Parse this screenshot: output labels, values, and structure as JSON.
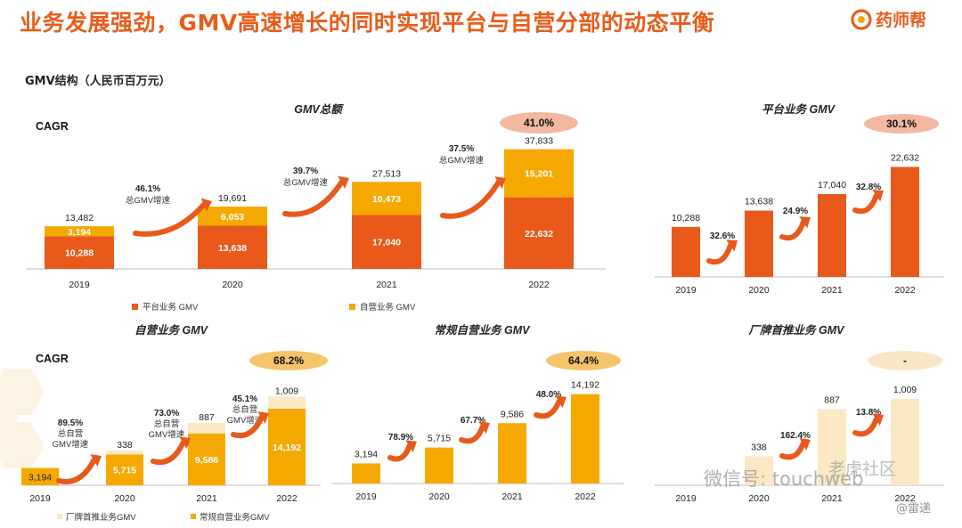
{
  "slide": {
    "title": "业务发展强劲，GMV高速增长的同时实现平台与自营分部的动态平衡",
    "subtitle": "GMV结构（人民币百万元）",
    "logo": "药师帮",
    "watermark": "微信号: touchweb",
    "watermark2": "@雷递",
    "watermark3": "老虎社区"
  },
  "colors": {
    "platform": "#e8591a",
    "self": "#f5a800",
    "light": "#fbe9c4",
    "bubble_red": "#f2b8a0",
    "bubble_yellow": "#f6c46a",
    "bubble_pale": "#fae6c6"
  },
  "chart_data": [
    {
      "id": "gmv-total",
      "type": "bar",
      "title": "GMV总额",
      "cagr_label": "CAGR",
      "cagr_value": "41.0%",
      "categories": [
        "2019",
        "2020",
        "2021",
        "2022"
      ],
      "series": [
        {
          "name": "平台业务 GMV",
          "values": [
            10288,
            13638,
            17040,
            22632
          ]
        },
        {
          "name": "自营业务 GMV",
          "values": [
            3194,
            6053,
            10473,
            15201
          ]
        }
      ],
      "totals": [
        "13,482",
        "19,691",
        "27,513",
        "37,833"
      ],
      "labels_platform": [
        "10,288",
        "13,638",
        "17,040",
        "22,632"
      ],
      "labels_self": [
        "3,194",
        "6,053",
        "10,473",
        "15,201"
      ],
      "growth": [
        {
          "rate": "46.1%",
          "text": "总GMV增速"
        },
        {
          "rate": "39.7%",
          "text": "总GMV增速"
        },
        {
          "rate": "37.5%",
          "text": "总GMV增速"
        }
      ],
      "ylim": [
        0,
        40000
      ]
    },
    {
      "id": "platform",
      "type": "bar",
      "title": "平台业务 GMV",
      "cagr_value": "30.1%",
      "categories": [
        "2019",
        "2020",
        "2021",
        "2022"
      ],
      "values": [
        10288,
        13638,
        17040,
        22632
      ],
      "labels": [
        "10,288",
        "13,638",
        "17,040",
        "22,632"
      ],
      "growth": [
        "32.6%",
        "24.9%",
        "32.8%"
      ],
      "ylim": [
        0,
        24000
      ]
    },
    {
      "id": "self-operated",
      "type": "bar",
      "title": "自营业务 GMV",
      "cagr_label": "CAGR",
      "cagr_value": "68.2%",
      "categories": [
        "2019",
        "2020",
        "2021",
        "2022"
      ],
      "series": [
        {
          "name": "厂牌首推业务GMV",
          "values": [
            0,
            338,
            887,
            1009
          ]
        },
        {
          "name": "常规自营业务GMV",
          "values": [
            3194,
            5715,
            9586,
            14192
          ]
        }
      ],
      "labels_brand": [
        "",
        "338",
        "887",
        "1,009"
      ],
      "labels_regular": [
        "3,194",
        "5,715",
        "9,586",
        "14,192"
      ],
      "growth": [
        {
          "rate": "89.5%",
          "line1": "总自营",
          "line2": "GMV增速"
        },
        {
          "rate": "73.0%",
          "line1": "总自营",
          "line2": "GMV增速"
        },
        {
          "rate": "45.1%",
          "line1": "总自营",
          "line2": "GMV增速"
        }
      ],
      "ylim": [
        0,
        16000
      ]
    },
    {
      "id": "regular-self",
      "type": "bar",
      "title": "常规自营业务 GMV",
      "cagr_value": "64.4%",
      "categories": [
        "2019",
        "2020",
        "2021",
        "2022"
      ],
      "values": [
        3194,
        5715,
        9586,
        14192
      ],
      "labels": [
        "3,194",
        "5,715",
        "9,586",
        "14,192"
      ],
      "growth": [
        "78.9%",
        "67.7%",
        "48.0%"
      ],
      "ylim": [
        0,
        15000
      ]
    },
    {
      "id": "brand-first",
      "type": "bar",
      "title": "厂牌首推业务 GMV",
      "cagr_value": "-",
      "categories": [
        "2019",
        "2020",
        "2021",
        "2022"
      ],
      "values": [
        0,
        338,
        887,
        1009
      ],
      "labels": [
        "",
        "338",
        "887",
        "1,009"
      ],
      "growth": [
        "",
        "162.4%",
        "13.8%"
      ],
      "ylim": [
        0,
        1100
      ]
    }
  ]
}
